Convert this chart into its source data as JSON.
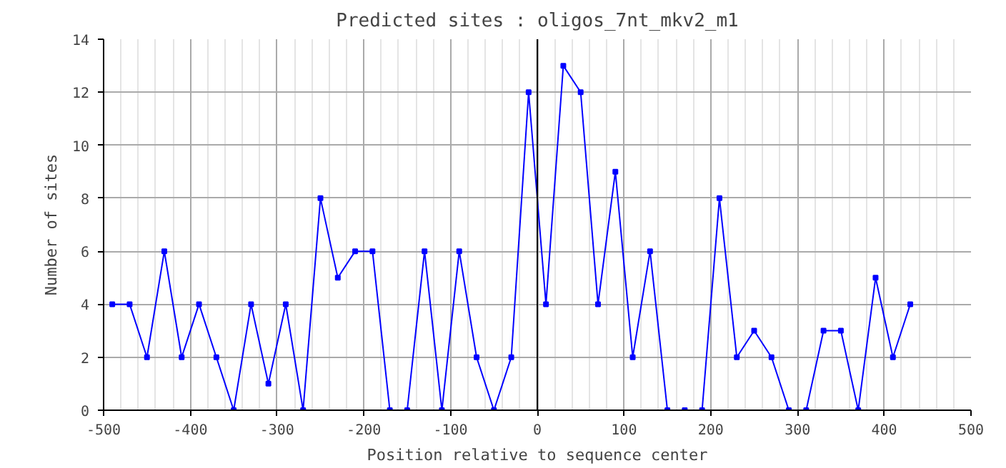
{
  "chart_data": {
    "type": "line",
    "title": "Predicted sites : oligos_7nt_mkv2_m1",
    "xlabel": "Position relative to sequence center",
    "ylabel": "Number of sites",
    "x": [
      -490,
      -470,
      -450,
      -430,
      -410,
      -390,
      -370,
      -350,
      -330,
      -310,
      -290,
      -270,
      -250,
      -230,
      -210,
      -190,
      -170,
      -150,
      -130,
      -110,
      -90,
      -70,
      -50,
      -30,
      -10,
      10,
      30,
      50,
      70,
      90,
      110,
      130,
      150,
      170,
      190,
      210,
      230,
      250,
      270,
      290,
      310,
      330,
      350,
      370,
      390,
      410,
      430
    ],
    "series": [
      {
        "color": "#0000ff",
        "values": [
          4,
          4,
          2,
          6,
          2,
          4,
          2,
          0,
          4,
          1,
          4,
          0,
          8,
          5,
          6,
          6,
          0,
          0,
          6,
          0,
          6,
          2,
          0,
          2,
          12,
          4,
          13,
          12,
          4,
          9,
          2,
          6,
          0,
          0,
          0,
          8,
          2,
          3,
          2,
          0,
          0,
          3,
          3,
          0,
          5,
          2,
          4
        ]
      }
    ],
    "xlim": [
      -500,
      500
    ],
    "xticks": [
      -500,
      -400,
      -300,
      -200,
      -100,
      0,
      100,
      200,
      300,
      400,
      500
    ],
    "ylim": [
      0,
      14
    ],
    "yticks": [
      0,
      2,
      4,
      6,
      8,
      10,
      12,
      14
    ],
    "ref_lines": [
      {
        "axis": "x",
        "value": 0,
        "color": "#000000"
      }
    ],
    "grid": true,
    "marker": "square",
    "line_style": "solid"
  }
}
